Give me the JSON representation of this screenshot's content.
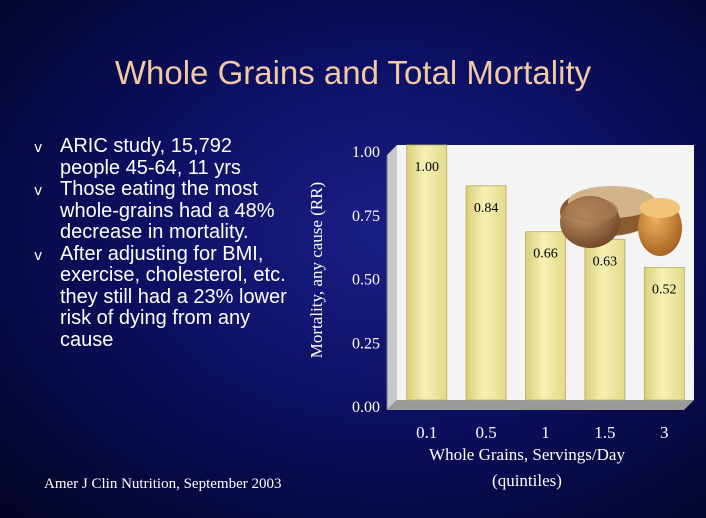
{
  "slide": {
    "title": "Whole Grains and Total Mortality",
    "bullets": [
      "ARIC study, 15,792 people 45-64, 11 yrs",
      "Those eating the most whole-grains had a 48% decrease in mortality.",
      "After adjusting for BMI, exercise, cholesterol, etc. they still had a 23% lower risk of dying from any cause"
    ],
    "bullet_icon": "v",
    "citation": "Amer J Clin Nutrition, September 2003"
  },
  "colors": {
    "title": "#f3c9a3",
    "bar": "#efe8a0",
    "plot_bg": "#f4f4f4",
    "text": "#ffffff"
  },
  "chart_data": {
    "type": "bar",
    "categories": [
      "0.1",
      "0.5",
      "1",
      "1.5",
      "3"
    ],
    "values": [
      1.0,
      0.84,
      0.66,
      0.63,
      0.52
    ],
    "data_labels": [
      "1.00",
      "0.84",
      "0.66",
      "0.63",
      "0.52"
    ],
    "ylabel": "Mortality, any cause (RR)",
    "xlabel": "Whole Grains, Servings/Day",
    "xlabel_sub": "(quintiles)",
    "ylim": [
      0,
      1
    ],
    "yticks": [
      0,
      0.25,
      0.5,
      0.75,
      1.0
    ],
    "ytick_labels": [
      "0.00",
      "0.25",
      "0.50",
      "0.75",
      "1.00"
    ],
    "grid": false,
    "decoration": "bread-loaves-illustration"
  }
}
